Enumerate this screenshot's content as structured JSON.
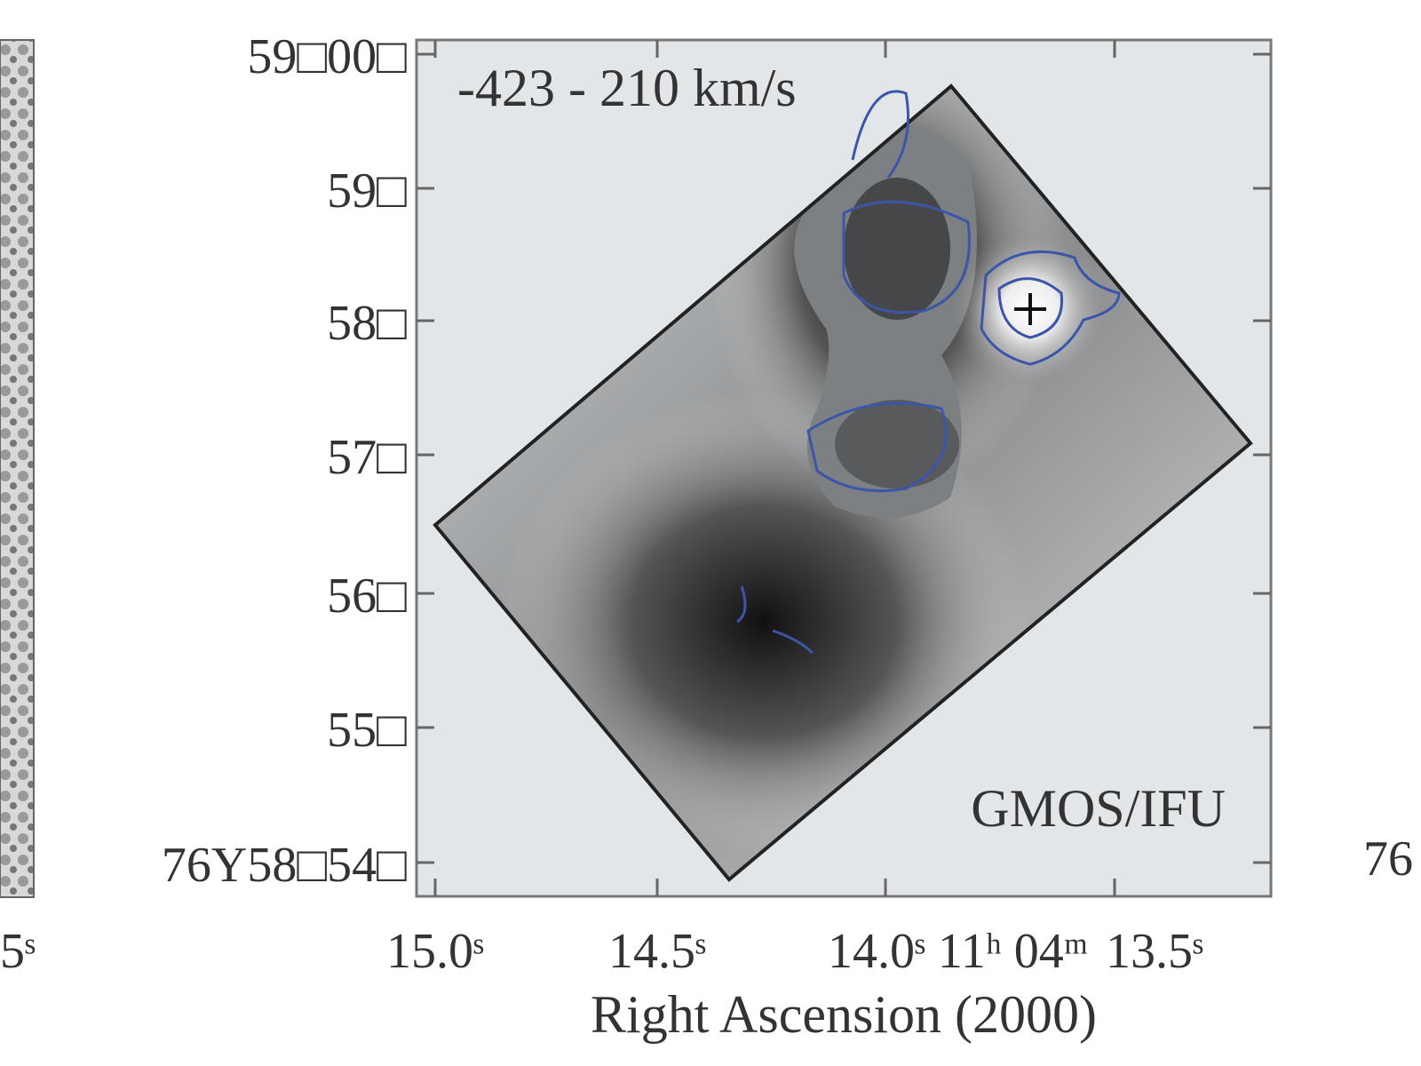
{
  "panel": {
    "velocity_range": "-423 - 210 km/s",
    "instrument": "GMOS/IFU"
  },
  "axes": {
    "x_label": "Right Ascension (2000)",
    "x_ticks": [
      "15.0ˢ",
      "14.5ˢ",
      "14.0ˢ 11ʰ 04ᵐ",
      "13.5ˢ"
    ],
    "y_ticks": [
      "59□00□",
      "59□",
      "58□",
      "57□",
      "56□",
      "55□",
      "76Y58□54□"
    ]
  },
  "neighbors": {
    "left_tick": "5ˢ",
    "right_tick": "76"
  }
}
